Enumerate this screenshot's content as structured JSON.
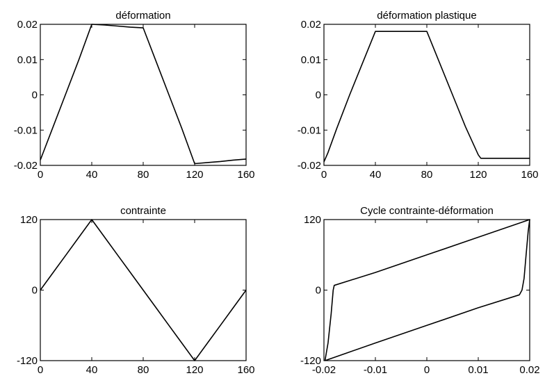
{
  "chart_data": [
    {
      "type": "line",
      "title": "déformation",
      "xlim": [
        0,
        160
      ],
      "ylim": [
        -0.02,
        0.02
      ],
      "xticks": [
        0,
        40,
        80,
        120,
        160
      ],
      "xtick_labels": [
        "0",
        "40",
        "80",
        "120",
        "160"
      ],
      "yticks": [
        -0.02,
        -0.01,
        0,
        0.01,
        0.02
      ],
      "ytick_labels": [
        "-0.02",
        "-0.01",
        "0",
        "0.01",
        "0.02"
      ],
      "grid": false,
      "series": [
        {
          "x": [
            0,
            10,
            20,
            30,
            40,
            50,
            60,
            70,
            80,
            90,
            100,
            110,
            120,
            130,
            140,
            150,
            160
          ],
          "y": [
            -0.0185,
            -0.009,
            0.0005,
            0.01,
            0.02,
            0.0198,
            0.0195,
            0.0192,
            0.019,
            0.0095,
            0.0,
            -0.0095,
            -0.0195,
            -0.0192,
            -0.0189,
            -0.0185,
            -0.0182
          ]
        }
      ]
    },
    {
      "type": "line",
      "title": "déformation plastique",
      "xlim": [
        0,
        160
      ],
      "ylim": [
        -0.02,
        0.02
      ],
      "xticks": [
        0,
        40,
        80,
        120,
        160
      ],
      "xtick_labels": [
        "0",
        "40",
        "80",
        "120",
        "160"
      ],
      "yticks": [
        -0.02,
        -0.01,
        0,
        0.01,
        0.02
      ],
      "ytick_labels": [
        "-0.02",
        "-0.01",
        "0",
        "0.01",
        "0.02"
      ],
      "grid": false,
      "series": [
        {
          "x": [
            0,
            3,
            10,
            20,
            30,
            40,
            80,
            90,
            100,
            110,
            120,
            122,
            160
          ],
          "y": [
            -0.019,
            -0.0165,
            -0.0095,
            0.0,
            0.009,
            0.018,
            0.018,
            0.009,
            0.0,
            -0.009,
            -0.017,
            -0.018,
            -0.018
          ]
        }
      ]
    },
    {
      "type": "line",
      "title": "contrainte",
      "xlim": [
        0,
        160
      ],
      "ylim": [
        -120,
        120
      ],
      "xticks": [
        0,
        40,
        80,
        120,
        160
      ],
      "xtick_labels": [
        "0",
        "40",
        "80",
        "120",
        "160"
      ],
      "yticks": [
        -120,
        0,
        120
      ],
      "ytick_labels": [
        "-120",
        "0",
        "120"
      ],
      "grid": false,
      "series": [
        {
          "x": [
            0,
            10,
            20,
            30,
            40,
            50,
            60,
            70,
            80,
            90,
            100,
            110,
            120,
            130,
            140,
            150,
            160
          ],
          "y": [
            0,
            30,
            60,
            90,
            120,
            90,
            60,
            30,
            0,
            -30,
            -60,
            -90,
            -120,
            -90,
            -60,
            -30,
            0
          ]
        }
      ]
    },
    {
      "type": "line",
      "title": "Cycle contrainte-déformation",
      "xlim": [
        -0.02,
        0.02
      ],
      "ylim": [
        -120,
        120
      ],
      "xticks": [
        -0.02,
        -0.01,
        0,
        0.01,
        0.02
      ],
      "xtick_labels": [
        "-0.02",
        "-0.01",
        "0",
        "0.01",
        "0.02"
      ],
      "yticks": [
        -120,
        0,
        120
      ],
      "ytick_labels": [
        "-120",
        "0",
        "120"
      ],
      "grid": false,
      "series": [
        {
          "x": [
            -0.0198,
            -0.0192,
            -0.0186,
            -0.0182,
            -0.018,
            -0.01,
            0.0,
            0.01,
            0.02,
            0.0197,
            0.0193,
            0.0189,
            0.0185,
            0.018,
            0.01,
            0.0,
            -0.01,
            -0.0198
          ],
          "y": [
            -120,
            -90,
            -40,
            0,
            8,
            30,
            60,
            90,
            120,
            100,
            60,
            20,
            0,
            -8,
            -30,
            -60,
            -90,
            -120
          ]
        }
      ]
    }
  ]
}
